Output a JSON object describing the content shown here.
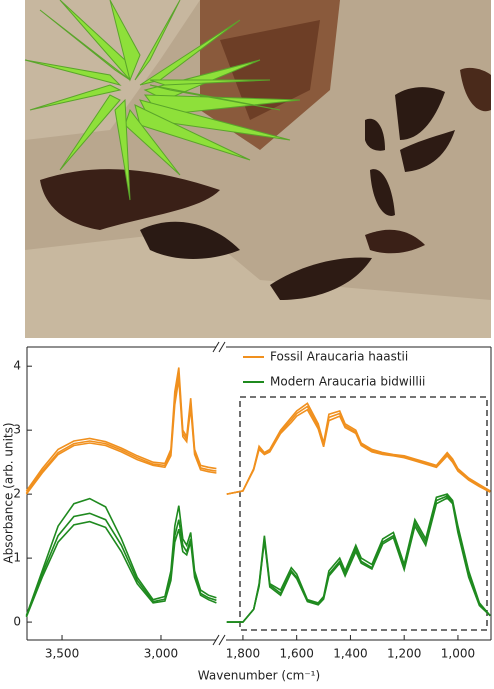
{
  "chart_data": {
    "type": "line",
    "ylabel": "Absorbance (arb. units)",
    "xlabel": "Wavenumber (cm⁻¹)",
    "ylim": [
      -0.28,
      4.3
    ],
    "yticks": [
      0,
      1,
      2,
      3,
      4
    ],
    "panels": [
      {
        "xlim": [
          3677,
          2722
        ],
        "xticks": [
          {
            "value": 3500,
            "label": "3,500"
          },
          {
            "value": 3000,
            "label": "3,000"
          }
        ],
        "x": [
          3680,
          3600,
          3520,
          3440,
          3360,
          3280,
          3200,
          3120,
          3040,
          2980,
          2950,
          2930,
          2910,
          2890,
          2870,
          2850,
          2830,
          2800,
          2760,
          2720
        ]
      },
      {
        "xlim": [
          1863,
          877
        ],
        "xticks": [
          {
            "value": 1800,
            "label": "1,800"
          },
          {
            "value": 1600,
            "label": "1,600"
          },
          {
            "value": 1400,
            "label": "1,400"
          },
          {
            "value": 1200,
            "label": "1,200"
          },
          {
            "value": 1000,
            "label": "1,000"
          }
        ],
        "x": [
          1860,
          1800,
          1760,
          1740,
          1720,
          1700,
          1660,
          1620,
          1600,
          1560,
          1520,
          1500,
          1480,
          1440,
          1420,
          1380,
          1360,
          1320,
          1280,
          1240,
          1200,
          1160,
          1120,
          1080,
          1040,
          1020,
          1000,
          960,
          920,
          880
        ]
      }
    ],
    "series": [
      {
        "name": "Fossil Araucaria haastii",
        "color": "#f0901e",
        "samples": [
          [
            [
              2.05,
              2.4,
              2.7,
              2.83,
              2.87,
              2.82,
              2.72,
              2.6,
              2.5,
              2.48,
              2.7,
              3.6,
              3.98,
              3.0,
              2.9,
              3.5,
              2.7,
              2.45,
              2.42,
              2.4
            ],
            [
              2.0,
              2.05,
              2.4,
              2.75,
              2.65,
              2.7,
              3.0,
              3.2,
              3.3,
              3.42,
              3.1,
              2.8,
              3.25,
              3.3,
              3.1,
              3.0,
              2.8,
              2.7,
              2.65,
              2.62,
              2.6,
              2.55,
              2.5,
              2.45,
              2.65,
              2.55,
              2.4,
              2.25,
              2.15,
              2.05
            ]
          ],
          [
            [
              2.0,
              2.33,
              2.62,
              2.76,
              2.8,
              2.76,
              2.66,
              2.54,
              2.45,
              2.42,
              2.6,
              3.4,
              3.8,
              2.9,
              2.82,
              3.35,
              2.62,
              2.38,
              2.35,
              2.33
            ],
            [
              2.0,
              2.05,
              2.38,
              2.7,
              2.62,
              2.66,
              2.95,
              3.12,
              3.22,
              3.32,
              3.02,
              2.74,
              3.15,
              3.22,
              3.04,
              2.95,
              2.76,
              2.66,
              2.62,
              2.6,
              2.57,
              2.52,
              2.47,
              2.42,
              2.6,
              2.5,
              2.36,
              2.22,
              2.12,
              2.03
            ]
          ],
          [
            [
              2.02,
              2.36,
              2.65,
              2.79,
              2.83,
              2.79,
              2.69,
              2.57,
              2.47,
              2.45,
              2.65,
              3.5,
              3.88,
              2.95,
              2.86,
              3.42,
              2.66,
              2.41,
              2.38,
              2.36
            ],
            [
              2.0,
              2.05,
              2.39,
              2.72,
              2.63,
              2.68,
              2.97,
              3.16,
              3.26,
              3.37,
              3.06,
              2.77,
              3.2,
              3.26,
              3.07,
              2.97,
              2.78,
              2.68,
              2.63,
              2.61,
              2.58,
              2.53,
              2.48,
              2.43,
              2.62,
              2.52,
              2.38,
              2.23,
              2.13,
              2.04
            ]
          ]
        ]
      },
      {
        "name": "Modern Araucaria bidwillii",
        "color": "#1f8a1f",
        "samples": [
          [
            [
              0.1,
              0.8,
              1.5,
              1.85,
              1.93,
              1.8,
              1.3,
              0.7,
              0.35,
              0.4,
              0.8,
              1.5,
              1.82,
              1.3,
              1.2,
              1.4,
              0.8,
              0.5,
              0.42,
              0.38
            ],
            [
              0.0,
              0.0,
              0.2,
              0.6,
              1.35,
              0.6,
              0.5,
              0.85,
              0.75,
              0.35,
              0.3,
              0.4,
              0.8,
              1.0,
              0.8,
              1.2,
              1.0,
              0.9,
              1.3,
              1.4,
              0.9,
              1.6,
              1.3,
              1.95,
              2.0,
              1.9,
              1.5,
              0.8,
              0.3,
              0.1
            ]
          ],
          [
            [
              0.1,
              0.75,
              1.35,
              1.65,
              1.7,
              1.6,
              1.2,
              0.65,
              0.32,
              0.36,
              0.7,
              1.35,
              1.6,
              1.2,
              1.1,
              1.3,
              0.75,
              0.45,
              0.38,
              0.34
            ],
            [
              0.0,
              0.0,
              0.2,
              0.58,
              1.3,
              0.58,
              0.45,
              0.8,
              0.7,
              0.33,
              0.28,
              0.38,
              0.75,
              0.95,
              0.75,
              1.15,
              0.95,
              0.85,
              1.25,
              1.35,
              0.85,
              1.55,
              1.25,
              1.9,
              1.97,
              1.88,
              1.45,
              0.75,
              0.28,
              0.1
            ]
          ],
          [
            [
              0.08,
              0.7,
              1.25,
              1.52,
              1.57,
              1.48,
              1.1,
              0.6,
              0.3,
              0.33,
              0.65,
              1.25,
              1.45,
              1.1,
              1.05,
              1.25,
              0.7,
              0.42,
              0.35,
              0.3
            ],
            [
              0.0,
              0.0,
              0.2,
              0.56,
              1.28,
              0.55,
              0.42,
              0.78,
              0.68,
              0.32,
              0.27,
              0.36,
              0.72,
              0.92,
              0.72,
              1.1,
              0.92,
              0.83,
              1.22,
              1.32,
              0.82,
              1.5,
              1.2,
              1.85,
              1.94,
              1.85,
              1.4,
              0.7,
              0.26,
              0.1
            ]
          ]
        ]
      }
    ]
  }
}
